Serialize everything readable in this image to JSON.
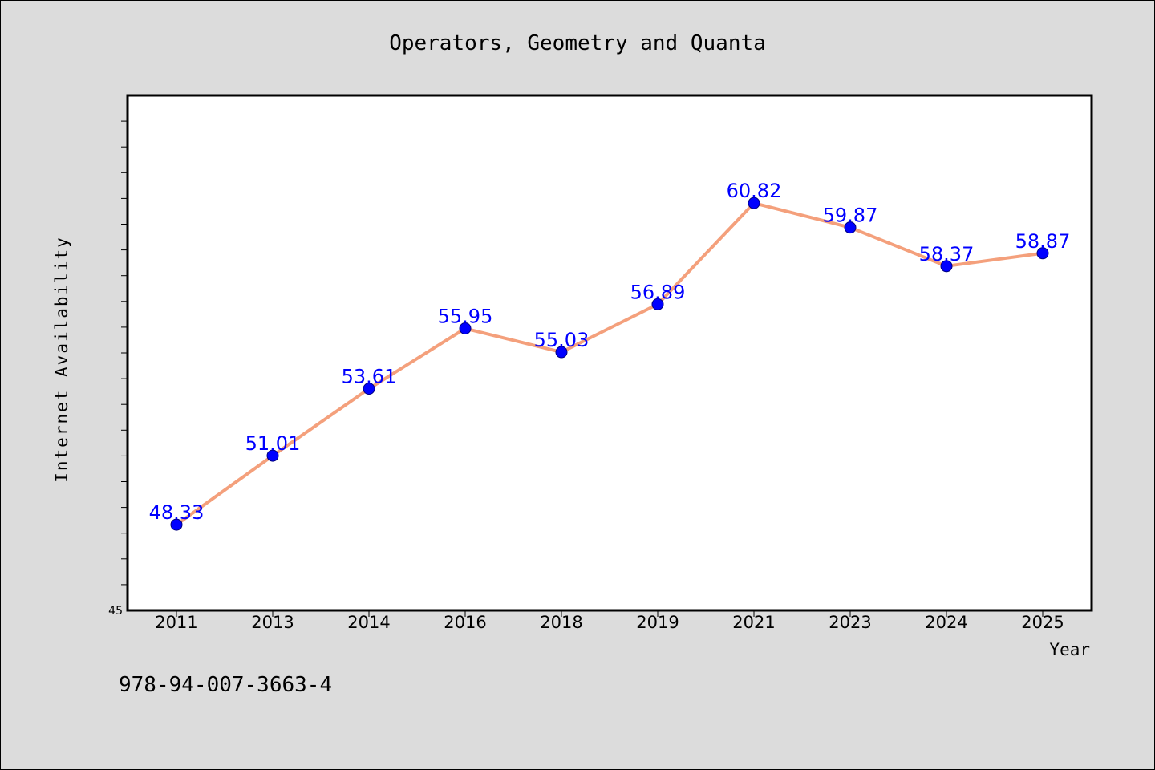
{
  "chart_data": {
    "type": "line",
    "title": "Operators, Geometry and Quanta",
    "xlabel": "Year",
    "ylabel": "Internet Availability",
    "categories": [
      "2011",
      "2013",
      "2014",
      "2016",
      "2018",
      "2019",
      "2021",
      "2023",
      "2024",
      "2025"
    ],
    "values": [
      48.33,
      51.01,
      53.61,
      55.95,
      55.03,
      56.89,
      60.82,
      59.87,
      58.37,
      58.87
    ],
    "data_labels": [
      "48.33",
      "51.01",
      "53.61",
      "55.95",
      "55.03",
      "56.89",
      "60.82",
      "59.87",
      "58.37",
      "58.87"
    ],
    "y_tick_labels": [
      "45"
    ],
    "ylim": [
      45,
      65
    ],
    "grid": false,
    "legend": "none",
    "colors": {
      "line": "#f4a07c",
      "marker": "#0000ff",
      "marker_edge": "#000080",
      "label": "#0000ff",
      "plot_bg": "#ffffff",
      "page_bg": "#dcdcdc"
    }
  },
  "footer": {
    "code": "978-94-007-3663-4"
  }
}
